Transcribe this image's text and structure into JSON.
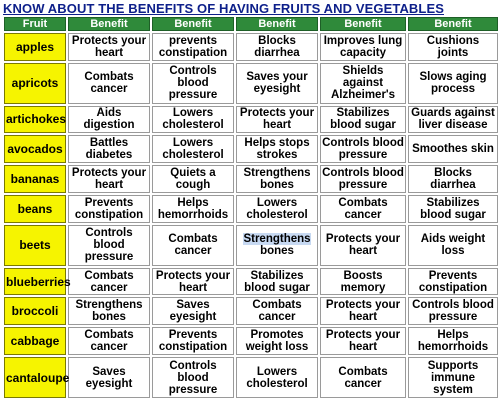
{
  "title": "KNOW ABOUT THE BENEFITS OF HAVING FRUITS AND VEGETABLES",
  "headers": [
    "Fruit",
    "Benefit",
    "Benefit",
    "Benefit",
    "Benefit",
    "Benefit"
  ],
  "rows": [
    {
      "fruit": "apples",
      "benefits": [
        "Protects your heart",
        "prevents constipation",
        "Blocks diarrhea",
        "Improves lung capacity",
        "Cushions joints"
      ]
    },
    {
      "fruit": "apricots",
      "benefits": [
        "Combats cancer",
        "Controls blood pressure",
        "Saves your eyesight",
        "Shields against Alzheimer's",
        "Slows aging process"
      ]
    },
    {
      "fruit": "artichokes",
      "benefits": [
        "Aids digestion",
        "Lowers cholesterol",
        "Protects your heart",
        "Stabilizes blood sugar",
        "Guards against liver disease"
      ]
    },
    {
      "fruit": "avocados",
      "benefits": [
        "Battles diabetes",
        "Lowers cholesterol",
        "Helps stops strokes",
        "Controls blood pressure",
        "Smoothes skin"
      ]
    },
    {
      "fruit": "bananas",
      "benefits": [
        "Protects your heart",
        "Quiets a cough",
        "Strengthens bones",
        "Controls blood pressure",
        "Blocks diarrhea"
      ]
    },
    {
      "fruit": "beans",
      "benefits": [
        "Prevents constipation",
        "Helps hemorrhoids",
        "Lowers cholesterol",
        "Combats cancer",
        "Stabilizes blood sugar"
      ]
    },
    {
      "fruit": "beets",
      "benefits": [
        "Controls blood pressure",
        "Combats cancer",
        "Strengthens bones",
        "Protects your heart",
        "Aids weight loss"
      ]
    },
    {
      "fruit": "blueberries",
      "benefits": [
        "Combats cancer",
        "Protects your heart",
        "Stabilizes blood sugar",
        "Boosts memory",
        "Prevents constipation"
      ]
    },
    {
      "fruit": "broccoli",
      "benefits": [
        "Strengthens bones",
        "Saves eyesight",
        "Combats cancer",
        "Protects your heart",
        "Controls blood pressure"
      ]
    },
    {
      "fruit": "cabbage",
      "benefits": [
        "Combats cancer",
        "Prevents constipation",
        "Promotes weight loss",
        "Protects your heart",
        "Helps hemorrhoids"
      ]
    },
    {
      "fruit": "cantaloupe",
      "benefits": [
        "Saves eyesight",
        "Controls blood pressure",
        "Lowers cholesterol",
        "Combats cancer",
        "Supports immune system"
      ]
    }
  ],
  "highlighted_text": "Strengthens",
  "colors": {
    "title": "#0d1f8a",
    "header_bg": "#2f8a3a",
    "fruit_bg": "#f6f400",
    "highlight": "#c7d9f2"
  }
}
